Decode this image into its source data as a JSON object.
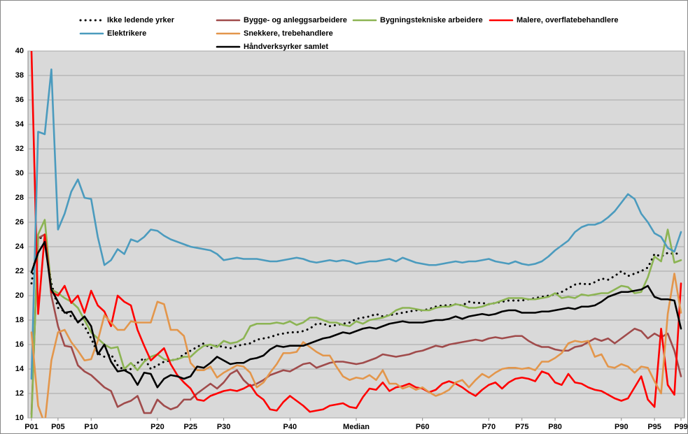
{
  "chart_data": {
    "type": "line",
    "categories": [
      "P01",
      null,
      null,
      null,
      "P05",
      null,
      null,
      null,
      null,
      "P10",
      null,
      null,
      null,
      null,
      null,
      null,
      null,
      null,
      null,
      "P20",
      null,
      null,
      null,
      null,
      "P25",
      null,
      null,
      null,
      null,
      "P30",
      null,
      null,
      null,
      null,
      null,
      null,
      null,
      null,
      null,
      "P40",
      null,
      null,
      null,
      null,
      null,
      null,
      null,
      null,
      null,
      "Median",
      null,
      null,
      null,
      null,
      null,
      null,
      null,
      null,
      null,
      "P60",
      null,
      null,
      null,
      null,
      null,
      null,
      null,
      null,
      null,
      "P70",
      null,
      null,
      null,
      null,
      "P75",
      null,
      null,
      null,
      null,
      "P80",
      null,
      null,
      null,
      null,
      null,
      null,
      null,
      null,
      null,
      "P90",
      null,
      null,
      null,
      null,
      "P95",
      null,
      null,
      null,
      "P99"
    ],
    "ylim": [
      10,
      40
    ],
    "yticks": [
      10,
      12,
      14,
      16,
      18,
      20,
      22,
      24,
      26,
      28,
      30,
      32,
      34,
      36,
      38,
      40
    ],
    "grid": true,
    "series": [
      {
        "name": "Ikke ledende yrker",
        "color": "#000000",
        "line_style": "dotted",
        "values": [
          21,
          24.8,
          24.6,
          21,
          19,
          18.7,
          18.3,
          18,
          17.5,
          16.5,
          15.3,
          15,
          15.2,
          14.3,
          13.9,
          14,
          14.5,
          14.9,
          14,
          14.3,
          14.6,
          14.7,
          14.8,
          15.2,
          15.5,
          15.8,
          16.1,
          15.7,
          15.9,
          15.8,
          15.7,
          15.9,
          16,
          16.1,
          16.4,
          16.5,
          16.6,
          16.8,
          16.9,
          17,
          17,
          17.1,
          17.3,
          17.7,
          17.7,
          17.5,
          17.6,
          17.7,
          17.8,
          18.1,
          18.2,
          18.3,
          18.5,
          18.3,
          18.4,
          18.5,
          18.6,
          18.7,
          18.8,
          18.8,
          18.9,
          19.1,
          19.2,
          19.2,
          19.3,
          19.2,
          19.5,
          19.4,
          19.4,
          19.3,
          19.4,
          19.5,
          19.6,
          19.6,
          19.6,
          19.7,
          19.8,
          19.9,
          20,
          20.1,
          20.3,
          20.6,
          20.9,
          21,
          20.9,
          21.1,
          21.4,
          21.3,
          21.6,
          22,
          21.6,
          21.8,
          22,
          22.3,
          23.4,
          23.2,
          23.5,
          23.4,
          23.5
        ]
      },
      {
        "name": "Bygge- og anleggsarbeidere",
        "color": "#a04b4b",
        "values": [
          10.3,
          24.7,
          25,
          20,
          17.5,
          15.9,
          15.8,
          14.3,
          13.8,
          13.5,
          13,
          12.5,
          12.2,
          10.9,
          11.2,
          11.4,
          11.8,
          10.4,
          10.4,
          11.5,
          11,
          10.7,
          10.9,
          11.5,
          11.5,
          12,
          12.4,
          12.8,
          12.4,
          12.9,
          13.6,
          13.9,
          13.1,
          12.6,
          12.8,
          13.1,
          13.5,
          13.7,
          13.9,
          13.8,
          14.1,
          14.4,
          14.5,
          14.1,
          14.3,
          14.5,
          14.6,
          14.6,
          14.5,
          14.4,
          14.5,
          14.7,
          14.9,
          15.2,
          15.1,
          15,
          15.1,
          15.2,
          15.4,
          15.5,
          15.7,
          15.9,
          15.8,
          16,
          16.1,
          16.2,
          16.3,
          16.4,
          16.3,
          16.5,
          16.6,
          16.5,
          16.6,
          16.7,
          16.7,
          16.3,
          16,
          15.8,
          15.8,
          15.6,
          15.5,
          15.5,
          15.8,
          15.9,
          16.2,
          16.5,
          16.3,
          16.5,
          16.1,
          16.5,
          16.9,
          17.3,
          17.1,
          16.5,
          16.9,
          16.6,
          16.9,
          15.5,
          13.4
        ]
      },
      {
        "name": "Bygningstekniske arbeidere",
        "color": "#8cb453",
        "values": [
          10,
          25,
          26.2,
          20.5,
          20.2,
          19.8,
          19.5,
          19,
          18,
          17,
          16.5,
          16,
          15.7,
          15.8,
          14,
          14.5,
          13.9,
          14.6,
          15,
          15.2,
          14.8,
          14.7,
          14.8,
          15,
          15,
          15.5,
          15.9,
          16,
          15.8,
          16.3,
          16.1,
          16.2,
          16.5,
          17.5,
          17.7,
          17.7,
          17.7,
          17.8,
          17.7,
          17.9,
          17.6,
          17.8,
          18.2,
          18.2,
          18,
          17.8,
          17.8,
          17.6,
          17.5,
          17.9,
          17.7,
          18,
          18.1,
          18.2,
          18.4,
          18.8,
          19,
          19,
          18.9,
          18.8,
          18.8,
          19,
          19.1,
          19.1,
          19.3,
          19.2,
          19,
          19,
          19.1,
          19.3,
          19.4,
          19.6,
          19.8,
          19.8,
          19.8,
          19.7,
          19.7,
          19.8,
          19.9,
          20.2,
          19.8,
          19.9,
          19.8,
          20.1,
          20,
          20.1,
          20.2,
          20.2,
          20.5,
          20.8,
          20.7,
          20.2,
          20.3,
          21.5,
          23.2,
          22.8,
          25.4,
          22.7,
          22.9
        ]
      },
      {
        "name": "Malere, overflatebehandlere",
        "color": "#ff0000",
        "values": [
          40,
          18.5,
          25,
          20.3,
          20,
          20.8,
          19.4,
          20,
          18.6,
          20.4,
          19.2,
          18.7,
          17.5,
          20,
          19.5,
          19.2,
          17.2,
          15.9,
          14.7,
          15.2,
          15.7,
          14.4,
          13.5,
          12.9,
          12.4,
          11.5,
          11.4,
          11.8,
          12,
          12.2,
          12.3,
          12.2,
          12.4,
          12.7,
          11.9,
          11.5,
          10.7,
          10.6,
          11.3,
          11.8,
          11.4,
          11,
          10.5,
          10.6,
          10.7,
          11,
          11.1,
          11.2,
          10.9,
          10.8,
          11.7,
          12.4,
          12.3,
          12.9,
          12.2,
          12.5,
          12.6,
          12.8,
          12.5,
          12.4,
          12.1,
          12.3,
          12.8,
          13,
          12.8,
          12.5,
          12.1,
          11.8,
          12.3,
          12.7,
          12.9,
          12.4,
          12.9,
          13.2,
          13.3,
          13.2,
          13,
          13.8,
          13.6,
          12.9,
          12.7,
          13.6,
          12.9,
          12.8,
          12.5,
          12.3,
          12.2,
          11.9,
          11.6,
          11.4,
          11.6,
          12.5,
          13.4,
          11.5,
          10.9,
          17.3,
          12.7,
          11.9,
          21
        ]
      },
      {
        "name": "Elektrikere",
        "color": "#4b9bbe",
        "values": [
          13.2,
          33.4,
          33.2,
          38.5,
          25.4,
          26.7,
          28.5,
          29.5,
          28,
          27.9,
          24.8,
          22.5,
          22.9,
          23.8,
          23.4,
          24.6,
          24.4,
          24.8,
          25.4,
          25.3,
          24.9,
          24.6,
          24.4,
          24.2,
          24,
          23.9,
          23.8,
          23.7,
          23.4,
          22.9,
          23,
          23.1,
          23,
          23,
          23,
          22.9,
          22.8,
          22.8,
          22.9,
          23,
          23.1,
          23,
          22.8,
          22.7,
          22.8,
          22.9,
          22.8,
          22.9,
          22.8,
          22.6,
          22.7,
          22.8,
          22.8,
          22.9,
          23,
          22.8,
          23.1,
          22.9,
          22.7,
          22.6,
          22.5,
          22.5,
          22.6,
          22.7,
          22.8,
          22.7,
          22.8,
          22.8,
          22.9,
          23,
          22.8,
          22.7,
          22.6,
          22.8,
          22.6,
          22.5,
          22.6,
          22.8,
          23.2,
          23.7,
          24.1,
          24.5,
          25.2,
          25.6,
          25.8,
          25.8,
          26,
          26.4,
          26.9,
          27.6,
          28.3,
          27.9,
          26.7,
          26,
          25.1,
          24.8,
          23.9,
          23.6,
          25.2
        ]
      },
      {
        "name": "Snekkere, trebehandlere",
        "color": "#e3964b",
        "values": [
          17,
          11,
          9.5,
          14.7,
          17,
          17.2,
          16.2,
          15.5,
          14.7,
          14.8,
          16.3,
          18.4,
          17.8,
          17.2,
          17.2,
          17.9,
          17.8,
          17.8,
          17.8,
          19.5,
          19.3,
          17.2,
          17.2,
          16.7,
          14.5,
          13.9,
          13.9,
          14.2,
          13.3,
          13.7,
          14,
          14.3,
          14.2,
          13.7,
          12.5,
          12.9,
          13.7,
          14.4,
          15.3,
          15.3,
          15.4,
          16.2,
          15.8,
          15.4,
          15.1,
          15.1,
          14.2,
          13.4,
          13.1,
          13.3,
          13.2,
          13.5,
          13.1,
          13.9,
          12.8,
          12.8,
          12.4,
          12.6,
          12.3,
          12.5,
          12.1,
          11.8,
          12,
          12.3,
          12.9,
          13.1,
          12.5,
          13.1,
          13.6,
          13.3,
          13.7,
          14,
          14.1,
          14.1,
          14,
          14.1,
          13.9,
          14.6,
          14.6,
          14.9,
          15.3,
          16.1,
          16.3,
          16.2,
          16.3,
          15,
          15.2,
          14.2,
          14.1,
          14.4,
          14.2,
          13.7,
          14.2,
          14.1,
          13,
          12,
          18.5,
          21.8,
          18.6
        ]
      },
      {
        "name": "Håndverksyrker samlet",
        "color": "#000000",
        "values": [
          21.9,
          23.5,
          24.4,
          20.5,
          19.5,
          18.6,
          18.7,
          17.8,
          18.3,
          17.5,
          15.2,
          16,
          14.6,
          13.8,
          13.9,
          13.6,
          12.7,
          13.7,
          13.6,
          12.5,
          13.2,
          13.5,
          13.4,
          13.2,
          13.4,
          14.2,
          14.1,
          14.5,
          15,
          14.7,
          14.4,
          14.5,
          14.5,
          14.8,
          14.9,
          15.1,
          15.6,
          15.9,
          15.8,
          15.9,
          15.9,
          15.9,
          16.1,
          16.3,
          16.5,
          16.6,
          16.8,
          17,
          16.9,
          17.1,
          17.3,
          17.4,
          17.3,
          17.5,
          17.7,
          17.8,
          17.9,
          17.8,
          17.8,
          17.8,
          17.9,
          18,
          18,
          18.1,
          18.3,
          18.1,
          18.3,
          18.4,
          18.5,
          18.4,
          18.5,
          18.7,
          18.8,
          18.8,
          18.6,
          18.6,
          18.6,
          18.7,
          18.7,
          18.8,
          18.9,
          19,
          18.9,
          19.1,
          19.1,
          19.2,
          19.5,
          19.9,
          20.1,
          20.3,
          20.3,
          20.4,
          20.5,
          20.8,
          19.9,
          19.7,
          19.7,
          19.6,
          17.3
        ]
      }
    ]
  }
}
